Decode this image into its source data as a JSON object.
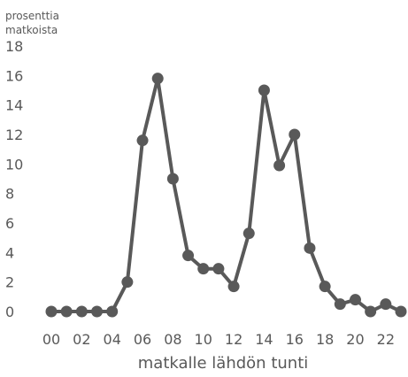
{
  "chart_data": {
    "type": "line",
    "ylabel_lines": [
      "prosenttia",
      "matkoista"
    ],
    "xlabel": "matkalle lähdön tunti",
    "ylim": [
      0,
      18
    ],
    "y_ticks": [
      0,
      2,
      4,
      6,
      8,
      10,
      12,
      14,
      16,
      18
    ],
    "x": [
      0,
      1,
      2,
      3,
      4,
      5,
      6,
      7,
      8,
      9,
      10,
      11,
      12,
      13,
      14,
      15,
      16,
      17,
      18,
      19,
      20,
      21,
      22,
      23
    ],
    "x_tick_labels": [
      "00",
      "02",
      "04",
      "06",
      "08",
      "10",
      "12",
      "14",
      "16",
      "18",
      "20",
      "22"
    ],
    "x_tick_values": [
      0,
      2,
      4,
      6,
      8,
      10,
      12,
      14,
      16,
      18,
      20,
      22
    ],
    "series": [
      {
        "color": "#595959",
        "values": [
          0,
          0,
          0,
          0,
          0,
          2.0,
          11.6,
          15.8,
          9.0,
          3.8,
          2.9,
          2.9,
          1.7,
          5.3,
          15.0,
          9.9,
          12.0,
          4.3,
          1.7,
          0.5,
          0.8,
          0,
          0.5,
          0
        ]
      }
    ],
    "grid": false,
    "legend": "none"
  }
}
